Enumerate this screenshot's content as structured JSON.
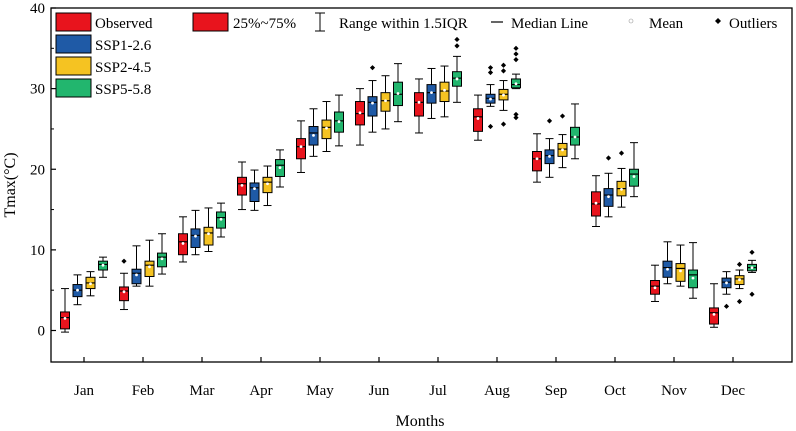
{
  "chart_data": {
    "type": "boxplot",
    "title": "",
    "xlabel": "Months",
    "ylabel": "Tmax(°C)",
    "ylim": [
      -3,
      40
    ],
    "yticks": [
      0,
      10,
      20,
      30,
      40
    ],
    "categories": [
      "Jan",
      "Feb",
      "Mar",
      "Apr",
      "May",
      "Jun",
      "Jul",
      "Aug",
      "Sep",
      "Oct",
      "Nov",
      "Dec"
    ],
    "series": [
      {
        "name": "Observed",
        "color": "#e8141d",
        "boxes": [
          {
            "whislo": -0.2,
            "q1": 0.2,
            "med": 1.6,
            "q3": 2.3,
            "whishi": 5.2,
            "mean": 1.5,
            "fliers": []
          },
          {
            "whislo": 2.6,
            "q1": 3.7,
            "med": 4.9,
            "q3": 5.4,
            "whishi": 7.1,
            "mean": 4.8,
            "fliers": [
              8.6
            ]
          },
          {
            "whislo": 8.5,
            "q1": 9.4,
            "med": 11.0,
            "q3": 12.0,
            "whishi": 14.1,
            "mean": 10.8,
            "fliers": []
          },
          {
            "whislo": 15.0,
            "q1": 16.8,
            "med": 18.2,
            "q3": 19.0,
            "whishi": 20.9,
            "mean": 18.0,
            "fliers": []
          },
          {
            "whislo": 19.6,
            "q1": 21.3,
            "med": 22.8,
            "q3": 23.8,
            "whishi": 26.0,
            "mean": 22.8,
            "fliers": []
          },
          {
            "whislo": 23.0,
            "q1": 25.5,
            "med": 26.9,
            "q3": 28.4,
            "whishi": 30.0,
            "mean": 27.0,
            "fliers": []
          },
          {
            "whislo": 24.5,
            "q1": 26.6,
            "med": 28.3,
            "q3": 29.5,
            "whishi": 31.2,
            "mean": 28.3,
            "fliers": []
          },
          {
            "whislo": 23.6,
            "q1": 24.7,
            "med": 26.5,
            "q3": 27.5,
            "whishi": 29.2,
            "mean": 26.3,
            "fliers": []
          },
          {
            "whislo": 18.4,
            "q1": 19.8,
            "med": 21.3,
            "q3": 22.2,
            "whishi": 24.4,
            "mean": 21.3,
            "fliers": []
          },
          {
            "whislo": 12.9,
            "q1": 14.2,
            "med": 15.7,
            "q3": 17.2,
            "whishi": 19.2,
            "mean": 15.8,
            "fliers": []
          },
          {
            "whislo": 3.6,
            "q1": 4.5,
            "med": 5.5,
            "q3": 6.2,
            "whishi": 8.1,
            "mean": 5.3,
            "fliers": []
          },
          {
            "whislo": 0.4,
            "q1": 0.8,
            "med": 2.2,
            "q3": 2.8,
            "whishi": 5.8,
            "mean": 2.0,
            "fliers": []
          }
        ]
      },
      {
        "name": "SSP1-2.6",
        "color": "#1f5aa6",
        "boxes": [
          {
            "whislo": 3.2,
            "q1": 4.2,
            "med": 5.0,
            "q3": 5.7,
            "whishi": 6.9,
            "mean": 5.0,
            "fliers": []
          },
          {
            "whislo": 5.5,
            "q1": 5.8,
            "med": 7.1,
            "q3": 7.6,
            "whishi": 10.5,
            "mean": 6.9,
            "fliers": []
          },
          {
            "whislo": 9.4,
            "q1": 10.3,
            "med": 11.8,
            "q3": 12.6,
            "whishi": 14.9,
            "mean": 11.7,
            "fliers": []
          },
          {
            "whislo": 14.9,
            "q1": 16.0,
            "med": 17.7,
            "q3": 18.3,
            "whishi": 19.9,
            "mean": 17.6,
            "fliers": []
          },
          {
            "whislo": 21.6,
            "q1": 23.0,
            "med": 24.5,
            "q3": 25.3,
            "whishi": 27.5,
            "mean": 24.2,
            "fliers": []
          },
          {
            "whislo": 24.6,
            "q1": 26.6,
            "med": 28.3,
            "q3": 29.0,
            "whishi": 31.0,
            "mean": 28.2,
            "fliers": [
              32.6
            ]
          },
          {
            "whislo": 26.3,
            "q1": 28.2,
            "med": 29.5,
            "q3": 30.5,
            "whishi": 32.5,
            "mean": 29.5,
            "fliers": []
          },
          {
            "whislo": 27.8,
            "q1": 28.2,
            "med": 28.8,
            "q3": 29.3,
            "whishi": 30.5,
            "mean": 28.7,
            "fliers": [
              25.3,
              32.0,
              32.6
            ]
          },
          {
            "whislo": 19.0,
            "q1": 20.7,
            "med": 21.7,
            "q3": 22.4,
            "whishi": 23.8,
            "mean": 21.6,
            "fliers": [
              26.0
            ]
          },
          {
            "whislo": 14.1,
            "q1": 15.4,
            "med": 16.8,
            "q3": 17.6,
            "whishi": 19.5,
            "mean": 16.6,
            "fliers": [
              21.4
            ]
          },
          {
            "whislo": 5.8,
            "q1": 6.6,
            "med": 7.8,
            "q3": 8.6,
            "whishi": 11.0,
            "mean": 7.6,
            "fliers": []
          },
          {
            "whislo": 4.5,
            "q1": 5.3,
            "med": 6.0,
            "q3": 6.5,
            "whishi": 7.3,
            "mean": 5.9,
            "fliers": [
              3.0
            ]
          }
        ]
      },
      {
        "name": "SSP2-4.5",
        "color": "#f5c322",
        "boxes": [
          {
            "whislo": 4.3,
            "q1": 5.2,
            "med": 5.9,
            "q3": 6.6,
            "whishi": 7.3,
            "mean": 5.8,
            "fliers": []
          },
          {
            "whislo": 5.5,
            "q1": 6.7,
            "med": 8.1,
            "q3": 8.6,
            "whishi": 11.2,
            "mean": 7.9,
            "fliers": []
          },
          {
            "whislo": 9.8,
            "q1": 10.6,
            "med": 12.1,
            "q3": 12.8,
            "whishi": 15.2,
            "mean": 12.0,
            "fliers": []
          },
          {
            "whislo": 15.5,
            "q1": 17.1,
            "med": 18.4,
            "q3": 19.0,
            "whishi": 20.4,
            "mean": 18.2,
            "fliers": []
          },
          {
            "whislo": 22.2,
            "q1": 23.8,
            "med": 25.2,
            "q3": 26.1,
            "whishi": 28.4,
            "mean": 25.1,
            "fliers": []
          },
          {
            "whislo": 25.0,
            "q1": 27.2,
            "med": 28.5,
            "q3": 29.5,
            "whishi": 31.6,
            "mean": 28.5,
            "fliers": []
          },
          {
            "whislo": 26.5,
            "q1": 28.4,
            "med": 29.7,
            "q3": 30.8,
            "whishi": 32.8,
            "mean": 29.8,
            "fliers": []
          },
          {
            "whislo": 27.3,
            "q1": 28.6,
            "med": 29.3,
            "q3": 29.9,
            "whishi": 31.0,
            "mean": 29.2,
            "fliers": [
              25.6,
              32.2,
              32.9
            ]
          },
          {
            "whislo": 20.2,
            "q1": 21.6,
            "med": 22.5,
            "q3": 23.2,
            "whishi": 24.3,
            "mean": 22.4,
            "fliers": [
              26.6
            ]
          },
          {
            "whislo": 15.3,
            "q1": 16.7,
            "med": 17.6,
            "q3": 18.5,
            "whishi": 20.1,
            "mean": 17.5,
            "fliers": [
              22.0
            ]
          },
          {
            "whislo": 5.5,
            "q1": 6.1,
            "med": 7.7,
            "q3": 8.3,
            "whishi": 10.6,
            "mean": 7.4,
            "fliers": []
          },
          {
            "whislo": 5.2,
            "q1": 5.7,
            "med": 6.4,
            "q3": 6.8,
            "whishi": 7.5,
            "mean": 6.3,
            "fliers": [
              3.6,
              8.2
            ]
          }
        ]
      },
      {
        "name": "SSP5-5.8",
        "color": "#22b66e",
        "boxes": [
          {
            "whislo": 6.6,
            "q1": 7.5,
            "med": 8.2,
            "q3": 8.6,
            "whishi": 9.1,
            "mean": 8.1,
            "fliers": []
          },
          {
            "whislo": 7.0,
            "q1": 7.9,
            "med": 9.1,
            "q3": 9.6,
            "whishi": 12.0,
            "mean": 8.9,
            "fliers": []
          },
          {
            "whislo": 11.6,
            "q1": 12.7,
            "med": 14.0,
            "q3": 14.7,
            "whishi": 15.8,
            "mean": 13.8,
            "fliers": []
          },
          {
            "whislo": 17.8,
            "q1": 19.1,
            "med": 20.5,
            "q3": 21.2,
            "whishi": 22.4,
            "mean": 20.2,
            "fliers": []
          },
          {
            "whislo": 22.9,
            "q1": 24.6,
            "med": 26.0,
            "q3": 27.1,
            "whishi": 29.2,
            "mean": 25.9,
            "fliers": []
          },
          {
            "whislo": 25.9,
            "q1": 27.9,
            "med": 29.3,
            "q3": 30.8,
            "whishi": 33.1,
            "mean": 29.4,
            "fliers": []
          },
          {
            "whislo": 28.3,
            "q1": 30.3,
            "med": 31.3,
            "q3": 32.1,
            "whishi": 34.0,
            "mean": 31.2,
            "fliers": [
              35.3,
              36.1
            ]
          },
          {
            "whislo": 30.0,
            "q1": 30.1,
            "med": 30.5,
            "q3": 31.2,
            "whishi": 31.8,
            "mean": 30.6,
            "fliers": [
              26.4,
              26.8,
              33.6,
              34.3,
              35.0
            ]
          },
          {
            "whislo": 21.3,
            "q1": 23.0,
            "med": 24.0,
            "q3": 25.2,
            "whishi": 28.1,
            "mean": 24.0,
            "fliers": []
          },
          {
            "whislo": 16.6,
            "q1": 17.9,
            "med": 19.4,
            "q3": 20.0,
            "whishi": 23.3,
            "mean": 19.1,
            "fliers": []
          },
          {
            "whislo": 4.0,
            "q1": 5.3,
            "med": 6.9,
            "q3": 7.5,
            "whishi": 10.9,
            "mean": 6.5,
            "fliers": []
          },
          {
            "whislo": 7.2,
            "q1": 7.4,
            "med": 7.8,
            "q3": 8.2,
            "whishi": 8.7,
            "mean": 7.8,
            "fliers": [
              4.5,
              9.7
            ]
          }
        ]
      }
    ],
    "legend": {
      "series_labels": [
        "Observed",
        "SSP1-2.6",
        "SSP2-4.5",
        "SSP5-5.8"
      ],
      "box_label": "25%~75%",
      "whisker_label": "Range within 1.5IQR",
      "median_label": "Median Line",
      "mean_label": "Mean",
      "outlier_label": "Outliers",
      "placement": "top-left"
    },
    "grid": false
  }
}
